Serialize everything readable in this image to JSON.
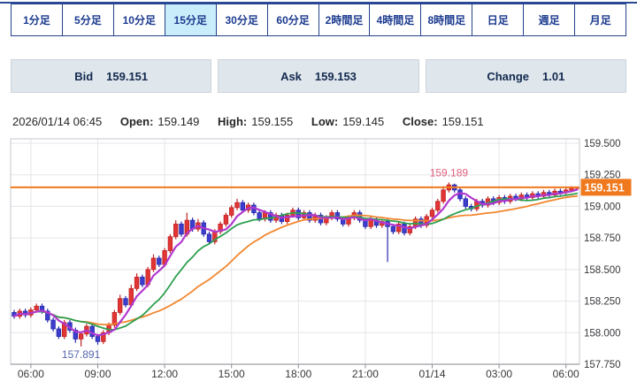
{
  "timeframes": {
    "selected_index": 3,
    "items": [
      {
        "key": "1min",
        "label": "1分足"
      },
      {
        "key": "5min",
        "label": "5分足"
      },
      {
        "key": "10min",
        "label": "10分足"
      },
      {
        "key": "15min",
        "label": "15分足"
      },
      {
        "key": "30min",
        "label": "30分足"
      },
      {
        "key": "60min",
        "label": "60分足"
      },
      {
        "key": "2h",
        "label": "2時間足"
      },
      {
        "key": "4h",
        "label": "4時間足"
      },
      {
        "key": "8h",
        "label": "8時間足"
      },
      {
        "key": "1d",
        "label": "日足"
      },
      {
        "key": "1w",
        "label": "週足"
      },
      {
        "key": "1mo",
        "label": "月足"
      }
    ]
  },
  "quote_bar": {
    "bid": {
      "label": "Bid",
      "value": "159.151"
    },
    "ask": {
      "label": "Ask",
      "value": "159.153"
    },
    "change": {
      "label": "Change",
      "value": "1.01"
    }
  },
  "ohlc_bar": {
    "datetime": "2026/01/14 06:45",
    "open_label": "Open:",
    "open": "159.149",
    "high_label": "High:",
    "high": "159.155",
    "low_label": "Low:",
    "low": "159.145",
    "close_label": "Close:",
    "close": "159.151"
  },
  "chart_data": {
    "type": "candlestick",
    "interval": "15min",
    "y_axis": {
      "min": 157.75,
      "max": 159.535,
      "tick_min": 157.75,
      "tick_max": 159.5,
      "tick_step": 0.25,
      "tick_labels": [
        "157.750",
        "158.000",
        "158.250",
        "158.500",
        "158.750",
        "159.000",
        "159.250",
        "159.500"
      ]
    },
    "x_labels": [
      {
        "index": 3,
        "label": "06:00"
      },
      {
        "index": 15,
        "label": "09:00"
      },
      {
        "index": 27,
        "label": "12:00"
      },
      {
        "index": 39,
        "label": "15:00"
      },
      {
        "index": 51,
        "label": "18:00"
      },
      {
        "index": 63,
        "label": "21:00"
      },
      {
        "index": 75,
        "label": "01/14"
      },
      {
        "index": 87,
        "label": "03:00"
      },
      {
        "index": 99,
        "label": "06:00"
      }
    ],
    "current_price": {
      "value": 159.151,
      "label": "159.151",
      "line_color": "#f0791e",
      "text_color": "#ffffff"
    },
    "annotations": [
      {
        "index": 12,
        "price": 157.891,
        "text": "157.891",
        "position": "below",
        "color": "#5566ab"
      },
      {
        "index": 78,
        "price": 159.189,
        "text": "159.189",
        "position": "above",
        "color": "#e2607e"
      }
    ],
    "moving_averages": [
      {
        "name": "ma-long",
        "period": 25,
        "color": "#f2862e",
        "width": 1.8
      },
      {
        "name": "ma-mid",
        "period": 13,
        "color": "#2fa050",
        "width": 1.8
      },
      {
        "name": "ma-short",
        "period": 5,
        "color": "#b138ce",
        "width": 2.2
      }
    ],
    "colors": {
      "up_fill": "#e23535",
      "up_stroke": "#c12424",
      "down_fill": "#3d3dce",
      "down_stroke": "#2929ae",
      "grid": "#e5e5e8",
      "border": "#c4c7cd",
      "axis_line": "#9a9da4",
      "tick": "#8b8e95",
      "tick_text": "#38383c"
    },
    "candles": [
      [
        "05:15",
        158.16,
        158.18,
        158.11,
        158.13
      ],
      [
        "05:30",
        158.13,
        158.19,
        158.11,
        158.17
      ],
      [
        "05:45",
        158.17,
        158.19,
        158.12,
        158.14
      ],
      [
        "06:00",
        158.14,
        158.2,
        158.12,
        158.18
      ],
      [
        "06:15",
        158.18,
        158.23,
        158.16,
        158.21
      ],
      [
        "06:30",
        158.21,
        158.23,
        158.15,
        158.17
      ],
      [
        "06:45",
        158.17,
        158.19,
        158.08,
        158.1
      ],
      [
        "07:00",
        158.1,
        158.12,
        158.01,
        158.03
      ],
      [
        "07:15",
        158.03,
        158.05,
        157.95,
        157.97
      ],
      [
        "07:30",
        157.97,
        158.1,
        157.95,
        158.08
      ],
      [
        "07:45",
        158.08,
        158.1,
        158.0,
        158.02
      ],
      [
        "08:00",
        158.02,
        158.04,
        157.92,
        157.95
      ],
      [
        "08:15",
        157.95,
        158.01,
        157.891,
        157.99
      ],
      [
        "08:30",
        157.99,
        158.07,
        157.97,
        158.05
      ],
      [
        "08:45",
        158.05,
        158.07,
        157.95,
        157.97
      ],
      [
        "09:00",
        157.97,
        157.99,
        157.905,
        157.93
      ],
      [
        "09:15",
        157.93,
        158.02,
        157.91,
        158.0
      ],
      [
        "09:30",
        158.0,
        158.08,
        157.98,
        158.06
      ],
      [
        "09:45",
        158.06,
        158.18,
        158.04,
        158.16
      ],
      [
        "10:00",
        158.16,
        158.3,
        158.14,
        158.27
      ],
      [
        "10:15",
        158.27,
        158.29,
        158.2,
        158.22
      ],
      [
        "10:30",
        158.22,
        158.38,
        158.2,
        158.35
      ],
      [
        "10:45",
        158.35,
        158.47,
        158.33,
        158.44
      ],
      [
        "11:00",
        158.44,
        158.46,
        158.36,
        158.38
      ],
      [
        "11:15",
        158.38,
        158.52,
        158.36,
        158.5
      ],
      [
        "11:30",
        158.5,
        158.62,
        158.48,
        158.59
      ],
      [
        "11:45",
        158.59,
        158.61,
        158.52,
        158.54
      ],
      [
        "12:00",
        158.54,
        158.67,
        158.52,
        158.65
      ],
      [
        "12:15",
        158.65,
        158.78,
        158.63,
        158.76
      ],
      [
        "12:30",
        158.76,
        158.89,
        158.74,
        158.86
      ],
      [
        "12:45",
        158.86,
        158.88,
        158.76,
        158.78
      ],
      [
        "13:00",
        158.78,
        158.95,
        158.76,
        158.89
      ],
      [
        "13:15",
        158.89,
        158.91,
        158.8,
        158.82
      ],
      [
        "13:30",
        158.82,
        158.9,
        158.8,
        158.87
      ],
      [
        "13:45",
        158.87,
        158.89,
        158.76,
        158.78
      ],
      [
        "14:00",
        158.78,
        158.8,
        158.7,
        158.72
      ],
      [
        "14:15",
        158.72,
        158.82,
        158.7,
        158.8
      ],
      [
        "14:30",
        158.8,
        158.88,
        158.78,
        158.86
      ],
      [
        "14:45",
        158.86,
        158.95,
        158.84,
        158.93
      ],
      [
        "15:00",
        158.93,
        159.01,
        158.91,
        158.99
      ],
      [
        "15:15",
        158.99,
        159.06,
        158.97,
        159.03
      ],
      [
        "15:30",
        159.03,
        159.05,
        158.95,
        158.97
      ],
      [
        "15:45",
        158.97,
        159.03,
        158.95,
        159.01
      ],
      [
        "16:00",
        159.01,
        159.03,
        158.93,
        158.95
      ],
      [
        "16:15",
        158.95,
        158.97,
        158.88,
        158.9
      ],
      [
        "16:30",
        158.9,
        158.97,
        158.88,
        158.95
      ],
      [
        "16:45",
        158.95,
        158.97,
        158.87,
        158.89
      ],
      [
        "17:00",
        158.89,
        158.95,
        158.87,
        158.93
      ],
      [
        "17:15",
        158.93,
        158.95,
        158.86,
        158.88
      ],
      [
        "17:30",
        158.88,
        158.95,
        158.86,
        158.93
      ],
      [
        "17:45",
        158.93,
        158.99,
        158.91,
        158.97
      ],
      [
        "18:00",
        158.97,
        158.99,
        158.89,
        158.91
      ],
      [
        "18:15",
        158.91,
        158.97,
        158.89,
        158.95
      ],
      [
        "18:30",
        158.95,
        158.97,
        158.87,
        158.89
      ],
      [
        "18:45",
        158.89,
        158.95,
        158.87,
        158.93
      ],
      [
        "19:00",
        158.93,
        158.95,
        158.85,
        158.87
      ],
      [
        "19:15",
        158.87,
        158.93,
        158.85,
        158.91
      ],
      [
        "19:30",
        158.91,
        158.97,
        158.89,
        158.95
      ],
      [
        "19:45",
        158.95,
        158.97,
        158.88,
        158.9
      ],
      [
        "20:00",
        158.9,
        158.92,
        158.84,
        158.86
      ],
      [
        "20:15",
        158.86,
        158.93,
        158.84,
        158.91
      ],
      [
        "20:30",
        158.91,
        158.97,
        158.89,
        158.95
      ],
      [
        "20:45",
        158.95,
        158.97,
        158.87,
        158.89
      ],
      [
        "21:00",
        158.89,
        158.91,
        158.82,
        158.84
      ],
      [
        "21:15",
        158.84,
        158.92,
        158.82,
        158.9
      ],
      [
        "21:30",
        158.9,
        158.92,
        158.83,
        158.85
      ],
      [
        "21:45",
        158.85,
        158.9,
        158.83,
        158.88
      ],
      [
        "22:00",
        158.88,
        158.9,
        158.56,
        158.84
      ],
      [
        "22:15",
        158.84,
        158.86,
        158.78,
        158.8
      ],
      [
        "22:30",
        158.8,
        158.88,
        158.78,
        158.86
      ],
      [
        "22:45",
        158.86,
        158.88,
        158.77,
        158.79
      ],
      [
        "23:00",
        158.79,
        158.86,
        158.77,
        158.84
      ],
      [
        "23:15",
        158.84,
        158.92,
        158.82,
        158.9
      ],
      [
        "23:30",
        158.9,
        158.92,
        158.83,
        158.85
      ],
      [
        "23:45",
        158.85,
        158.94,
        158.83,
        158.92
      ],
      [
        "00:00",
        158.92,
        158.99,
        158.9,
        158.97
      ],
      [
        "00:15",
        158.97,
        159.06,
        158.95,
        159.04
      ],
      [
        "00:30",
        159.04,
        159.16,
        159.02,
        159.13
      ],
      [
        "00:45",
        159.13,
        159.189,
        159.11,
        159.17
      ],
      [
        "01:00",
        159.17,
        159.18,
        159.11,
        159.13
      ],
      [
        "01:15",
        159.13,
        159.15,
        159.04,
        159.06
      ],
      [
        "01:30",
        159.06,
        159.08,
        158.98,
        159.0
      ],
      [
        "01:45",
        159.0,
        159.02,
        158.96,
        158.98
      ],
      [
        "02:00",
        158.98,
        159.06,
        158.96,
        159.04
      ],
      [
        "02:15",
        159.04,
        159.06,
        158.99,
        159.01
      ],
      [
        "02:30",
        159.01,
        159.08,
        158.99,
        159.06
      ],
      [
        "02:45",
        159.06,
        159.08,
        159.01,
        159.03
      ],
      [
        "03:00",
        159.03,
        159.09,
        159.01,
        159.07
      ],
      [
        "03:15",
        159.07,
        159.09,
        159.02,
        159.04
      ],
      [
        "03:30",
        159.04,
        159.1,
        159.02,
        159.08
      ],
      [
        "03:45",
        159.08,
        159.1,
        159.04,
        159.06
      ],
      [
        "04:00",
        159.06,
        159.11,
        159.04,
        159.09
      ],
      [
        "04:15",
        159.09,
        159.11,
        159.05,
        159.07
      ],
      [
        "04:30",
        159.07,
        159.12,
        159.05,
        159.1
      ],
      [
        "04:45",
        159.1,
        159.12,
        159.06,
        159.08
      ],
      [
        "05:00",
        159.08,
        159.13,
        159.06,
        159.11
      ],
      [
        "05:15",
        159.11,
        159.13,
        159.07,
        159.09
      ],
      [
        "05:30",
        159.09,
        159.14,
        159.07,
        159.12
      ],
      [
        "05:45",
        159.12,
        159.14,
        159.09,
        159.11
      ],
      [
        "06:00",
        159.11,
        159.15,
        159.09,
        159.13
      ],
      [
        "06:15",
        159.13,
        159.16,
        159.11,
        159.149
      ],
      [
        "06:30",
        159.149,
        159.155,
        159.145,
        159.151
      ]
    ]
  }
}
